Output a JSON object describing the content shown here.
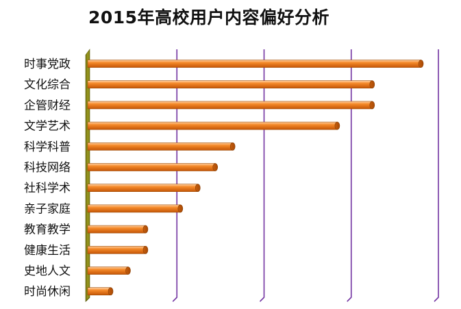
{
  "chart_data": {
    "type": "bar",
    "orientation": "horizontal",
    "title": "2015年高校用户内容偏好分析",
    "categories": [
      "时事党政",
      "文化综合",
      "企管财经",
      "文学艺术",
      "科学科普",
      "科技网络",
      "社科学术",
      "亲子家庭",
      "教育教学",
      "健康生活",
      "史地人文",
      "时尚休闲"
    ],
    "values": [
      95,
      81,
      81,
      71,
      41,
      36,
      31,
      26,
      16,
      16,
      11,
      6
    ],
    "xlim": [
      0,
      100
    ],
    "gridlines": [
      25,
      50,
      75,
      100
    ],
    "grid": true,
    "legend": false,
    "bar_color": "#f07f1a",
    "gridline_color": "#7030a0",
    "axis_wall_color": "#8a8a18"
  }
}
